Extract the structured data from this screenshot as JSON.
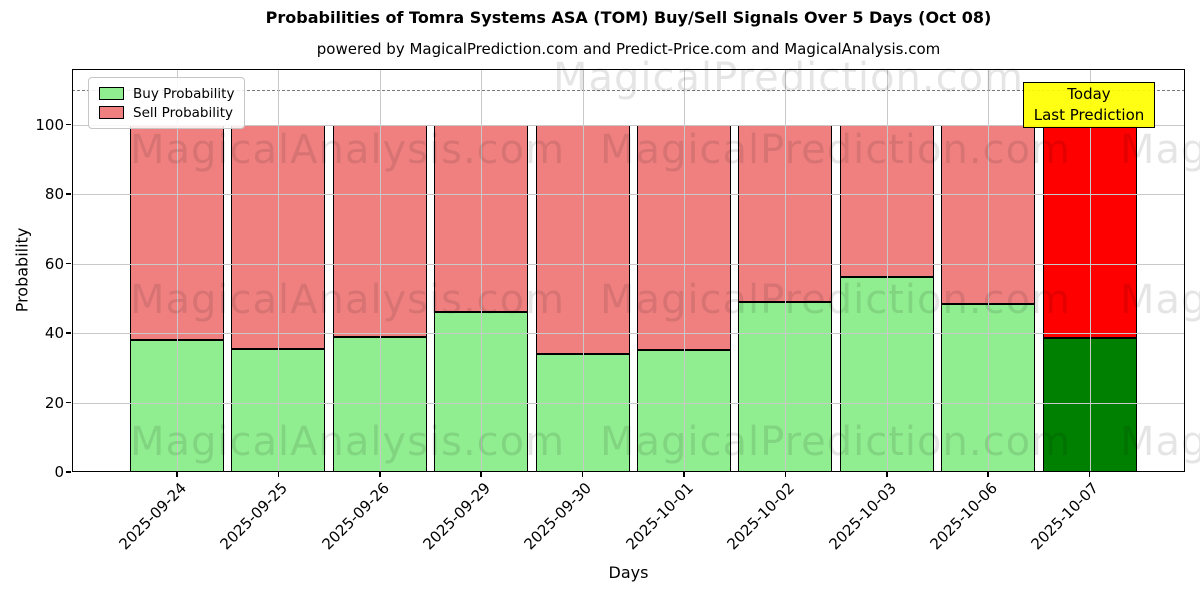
{
  "subtitle": "powered by MagicalPrediction.com and Predict-Price.com and MagicalAnalysis.com",
  "watermarks": {
    "left": "MagicalAnalysis.com",
    "right": "MagicalPrediction.com"
  },
  "annotation": {
    "line1": "Today",
    "line2": "Last Prediction",
    "bg_color": "#ffff00"
  },
  "legend": [
    {
      "label": "Buy Probability",
      "color": "#90EE90"
    },
    {
      "label": "Sell Probability",
      "color": "#F08080"
    }
  ],
  "chart_data": {
    "type": "bar",
    "stacked": true,
    "title": "Probabilities of Tomra Systems ASA (TOM) Buy/Sell Signals Over 5 Days (Oct 08)",
    "xlabel": "Days",
    "ylabel": "Probability",
    "categories": [
      "2025-09-24",
      "2025-09-25",
      "2025-09-26",
      "2025-09-29",
      "2025-09-30",
      "2025-10-01",
      "2025-10-02",
      "2025-10-03",
      "2025-10-06",
      "2025-10-07"
    ],
    "series": [
      {
        "name": "Buy Probability",
        "color": "#90EE90",
        "values": [
          38,
          35.5,
          39,
          46,
          34,
          35,
          49,
          56,
          48.5,
          38.5
        ]
      },
      {
        "name": "Sell Probability",
        "color": "#F08080",
        "values": [
          62,
          64.5,
          61,
          54,
          66,
          65,
          51,
          44,
          51.5,
          61.5
        ]
      }
    ],
    "today_index": 9,
    "today_colors": {
      "buy": "#008000",
      "sell": "#ff0000"
    },
    "yticks": [
      0,
      20,
      40,
      60,
      80,
      100
    ],
    "ylim": [
      0,
      116
    ],
    "dashed_line_y": 110,
    "grid": true,
    "legend_position": "upper left"
  }
}
